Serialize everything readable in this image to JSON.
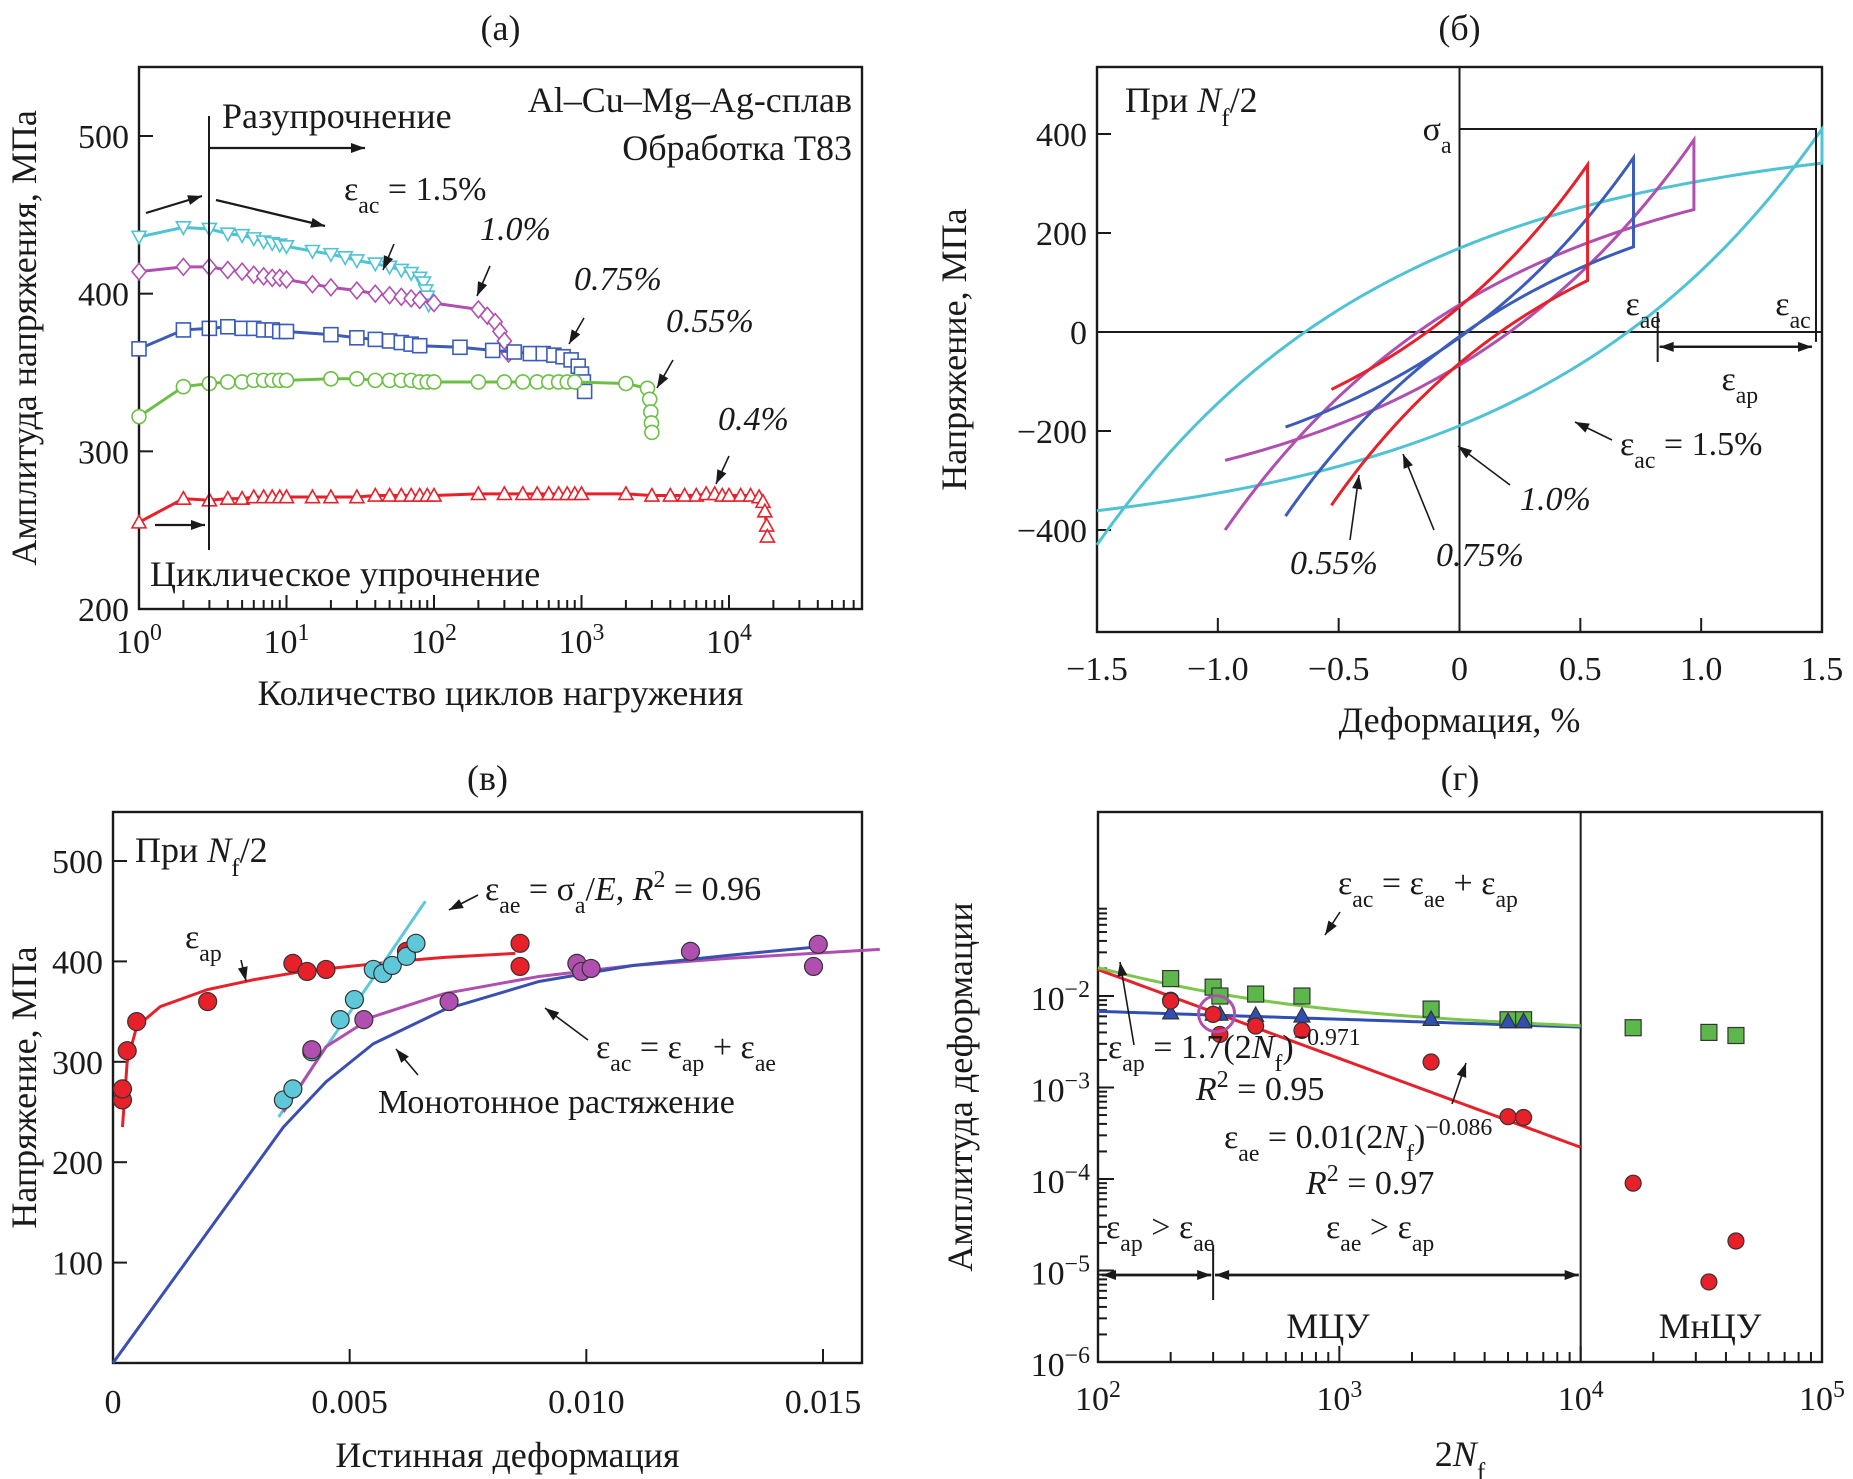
{
  "chart_data": [
    {
      "id": "a",
      "type": "scatter",
      "panel_label": "(а)",
      "title": "(a)",
      "xlabel": "Количество циклов нагружения",
      "ylabel": "Амплитуда напряжения, МПа",
      "xscale": "log",
      "xlim": [
        1,
        80000
      ],
      "ylim": [
        200,
        535
      ],
      "xticks": [
        {
          "v": 1,
          "base": "10",
          "exp": "0"
        },
        {
          "v": 10,
          "base": "10",
          "exp": "1"
        },
        {
          "v": 100,
          "base": "10",
          "exp": "2"
        },
        {
          "v": 1000,
          "base": "10",
          "exp": "3"
        },
        {
          "v": 10000,
          "base": "10",
          "exp": "4"
        }
      ],
      "yticks": [
        200,
        300,
        400,
        500
      ],
      "annotations": {
        "alloy": "Al–Cu–Mg–Ag-сплав",
        "treatment": "Обработка Т83",
        "softening": "Разупрочнение",
        "hardening": "Циклическое упрочнение",
        "eps_prefix": "ε",
        "eps_sub": "ac",
        "eps_eq": " = 1.5%"
      },
      "series": [
        {
          "name": "1.5%",
          "label": "1.5%",
          "color": "#4fc3d4",
          "marker": "triangle-down",
          "x": [
            1,
            2,
            3,
            4,
            5,
            6,
            7,
            8,
            9,
            10,
            15,
            20,
            25,
            30,
            40,
            50,
            60,
            70,
            80,
            85,
            88,
            90,
            92
          ],
          "y": [
            436,
            442,
            441,
            438,
            437,
            435,
            433,
            432,
            431,
            430,
            427,
            425,
            423,
            421,
            419,
            417,
            415,
            413,
            410,
            407,
            402,
            398,
            393
          ]
        },
        {
          "name": "1.0%",
          "label": "1.0%",
          "color": "#b04fb0",
          "marker": "diamond",
          "x": [
            1,
            2,
            3,
            4,
            5,
            6,
            7,
            8,
            9,
            10,
            15,
            20,
            30,
            40,
            50,
            60,
            70,
            80,
            100,
            200,
            230,
            260,
            280,
            300,
            320
          ],
          "y": [
            414,
            417,
            417,
            415,
            414,
            412,
            411,
            410,
            410,
            409,
            406,
            404,
            402,
            400,
            399,
            398,
            397,
            396,
            394,
            390,
            386,
            382,
            376,
            370,
            362
          ]
        },
        {
          "name": "0.75%",
          "label": "0.75%",
          "color": "#3b5cb8",
          "marker": "square",
          "x": [
            1,
            2,
            3,
            4,
            5,
            6,
            7,
            8,
            9,
            10,
            20,
            30,
            40,
            50,
            60,
            70,
            80,
            150,
            250,
            350,
            450,
            550,
            650,
            750,
            850,
            950,
            1000,
            1030,
            1050
          ],
          "y": [
            365,
            377,
            378,
            379,
            378,
            378,
            377,
            377,
            376,
            376,
            374,
            372,
            371,
            370,
            369,
            368,
            367,
            366,
            364,
            363,
            362,
            362,
            361,
            360,
            358,
            354,
            349,
            344,
            338
          ]
        },
        {
          "name": "0.55%",
          "label": "0.55%",
          "color": "#6cbf45",
          "marker": "circle",
          "x": [
            1,
            2,
            3,
            4,
            5,
            6,
            7,
            8,
            9,
            10,
            20,
            30,
            40,
            50,
            60,
            70,
            80,
            90,
            100,
            200,
            300,
            400,
            500,
            600,
            700,
            800,
            900,
            2000,
            2800,
            2900,
            2950,
            2980,
            3000
          ],
          "y": [
            322,
            341,
            343,
            344,
            344,
            345,
            345,
            345,
            345,
            345,
            346,
            346,
            345,
            345,
            345,
            345,
            344,
            344,
            344,
            344,
            344,
            344,
            344,
            344,
            344,
            344,
            344,
            343,
            340,
            333,
            325,
            318,
            312
          ]
        },
        {
          "name": "0.4%",
          "label": "0.4%",
          "color": "#e8202a",
          "marker": "triangle-up",
          "x": [
            1,
            2,
            3,
            4,
            5,
            6,
            7,
            8,
            9,
            10,
            15,
            20,
            30,
            40,
            50,
            60,
            70,
            80,
            90,
            100,
            200,
            300,
            400,
            500,
            600,
            700,
            800,
            900,
            1000,
            2000,
            3000,
            4000,
            5000,
            6000,
            7000,
            8000,
            9000,
            10000,
            12000,
            14000,
            16000,
            17000,
            17500,
            18000,
            18200
          ],
          "y": [
            255,
            270,
            269,
            270,
            270,
            271,
            271,
            271,
            271,
            271,
            271,
            271,
            271,
            272,
            272,
            272,
            272,
            272,
            272,
            272,
            273,
            273,
            273,
            273,
            273,
            273,
            273,
            273,
            273,
            273,
            272,
            272,
            272,
            272,
            273,
            273,
            272,
            272,
            272,
            272,
            271,
            268,
            262,
            253,
            246
          ]
        }
      ]
    },
    {
      "id": "b",
      "type": "line",
      "title": "(б)",
      "xlabel": "Деформация, %",
      "ylabel": "Напряжение, МПа",
      "xlim": [
        -1.5,
        1.5
      ],
      "ylim": [
        -515,
        540
      ],
      "xticks": [
        "−1.5",
        "−1.0",
        "−0.5",
        "0",
        "0.5",
        "1.0",
        "1.5"
      ],
      "xtick_values": [
        -1.5,
        -1.0,
        -0.5,
        0,
        0.5,
        1.0,
        1.5
      ],
      "yticks": [
        {
          "v": 400,
          "t": "400"
        },
        {
          "v": 200,
          "t": "200"
        },
        {
          "v": 0,
          "t": "0"
        },
        {
          "v": -200,
          "t": "−200"
        },
        {
          "v": -400,
          "t": "−400"
        }
      ],
      "annotations": {
        "at_half_life_prefix": "При ",
        "at_half_life_N": "N",
        "at_half_life_sub": "f",
        "at_half_life_suffix": "/2",
        "sigma_a": "σ",
        "sigma_sub": "a",
        "eps": "ε",
        "eps_ae_sub": "ae",
        "eps_ac_sub": "ac",
        "eps_ap_sub": "ap",
        "eps_ac_eq": " = 1.5%",
        "loop_1_0": "1.0%",
        "loop_0_55": "0.55%",
        "loop_0_75": "0.75%"
      },
      "loops": [
        {
          "name": "1.5%",
          "color": "#4fc3d4",
          "strain_amplitude": 1.5,
          "stress_max": 410,
          "stress_min": -430,
          "plastic_zero_crossing": 0.82
        },
        {
          "name": "1.0%",
          "color": "#b04fb0",
          "strain_amplitude": 0.97,
          "stress_max": 388,
          "stress_min": -400,
          "plastic_zero_crossing": 0.45
        },
        {
          "name": "0.75%",
          "color": "#3b5cb8",
          "strain_amplitude": 0.72,
          "stress_max": 352,
          "stress_min": -372,
          "plastic_zero_crossing": 0.22
        },
        {
          "name": "0.55%",
          "color": "#e8202a",
          "strain_amplitude": 0.53,
          "stress_max": 338,
          "stress_min": -350,
          "plastic_zero_crossing": 0.06
        }
      ]
    },
    {
      "id": "c",
      "type": "scatter",
      "title": "(в)",
      "xlabel": "Истинная деформация",
      "ylabel": "Напряжение, МПа",
      "xlim": [
        0,
        0.0162
      ],
      "ylim": [
        0,
        548
      ],
      "xticks": [
        {
          "v": 0,
          "t": "0"
        },
        {
          "v": 0.005,
          "t": "0.005"
        },
        {
          "v": 0.01,
          "t": "0.010"
        },
        {
          "v": 0.015,
          "t": "0.015"
        }
      ],
      "yticks": [
        100,
        200,
        300,
        400,
        500
      ],
      "annotations": {
        "at_half_life_prefix": "При ",
        "at_half_life_N": "N",
        "at_half_life_sub": "f",
        "at_half_life_suffix": "/2",
        "eps": "ε",
        "ae_eq_main": " = σ",
        "ae_eq_rest": "/E, R",
        "ae_eq_end": " = 0.96",
        "ac_eq": "ε",
        "monotonic": "Монотонное растяжение"
      },
      "series": [
        {
          "name": "ε_ap",
          "color": "#e8202a",
          "x": [
            0.0002,
            0.0002,
            0.0003,
            0.0005,
            0.002,
            0.0038,
            0.0041,
            0.0045,
            0.0062,
            0.0086,
            0.0086
          ],
          "y": [
            262,
            273,
            311,
            340,
            360,
            398,
            390,
            392,
            410,
            418,
            395
          ]
        },
        {
          "name": "ε_ae",
          "color": "#5fc8d8",
          "x": [
            0.0036,
            0.0038,
            0.0042,
            0.0048,
            0.0051,
            0.0055,
            0.0057,
            0.0059,
            0.0062,
            0.0064
          ],
          "y": [
            262,
            273,
            310,
            342,
            362,
            392,
            388,
            396,
            405,
            418
          ]
        },
        {
          "name": "ε_ac",
          "color": "#b04fb0",
          "x": [
            0.0042,
            0.0053,
            0.0071,
            0.0098,
            0.0099,
            0.0101,
            0.0122,
            0.0149,
            0.0148
          ],
          "y": [
            312,
            342,
            360,
            398,
            390,
            393,
            410,
            417,
            395
          ]
        }
      ],
      "curves": [
        {
          "name": "ε_ap fit",
          "color": "#e8202a",
          "x": [
            0.0002,
            0.0003,
            0.0005,
            0.001,
            0.002,
            0.003,
            0.004,
            0.005,
            0.006,
            0.007,
            0.0085
          ],
          "y": [
            235,
            300,
            335,
            355,
            372,
            382,
            390,
            395,
            400,
            404,
            408
          ]
        },
        {
          "name": "ε_ae = σa/E, R² = 0.96",
          "color": "#5fc8d8",
          "x": [
            0.0035,
            0.0066
          ],
          "y": [
            245,
            460
          ]
        },
        {
          "name": "ε_ac = ε_ap + ε_ae",
          "color": "#b04fb0",
          "x": [
            0.0036,
            0.0045,
            0.0055,
            0.007,
            0.009,
            0.011,
            0.013,
            0.0162
          ],
          "y": [
            250,
            315,
            345,
            368,
            385,
            396,
            403,
            412
          ]
        },
        {
          "name": "Монотонное растяжение",
          "color": "#3b4fb0",
          "x": [
            0.0,
            0.0036,
            0.0045,
            0.0055,
            0.007,
            0.009,
            0.011,
            0.013,
            0.015
          ],
          "y": [
            0,
            235,
            280,
            318,
            352,
            380,
            396,
            406,
            415
          ]
        }
      ]
    },
    {
      "id": "d",
      "type": "scatter",
      "title": "(г)",
      "xlabel_prefix": "2",
      "xlabel_N": "N",
      "xlabel_sub": "f",
      "ylabel": "Амплитуда деформации",
      "xscale": "log",
      "yscale": "log",
      "xlim": [
        100,
        100000
      ],
      "ylim": [
        1e-06,
        0.055
      ],
      "xticks": [
        {
          "v": 100,
          "base": "10",
          "exp": "2"
        },
        {
          "v": 1000,
          "base": "10",
          "exp": "3"
        },
        {
          "v": 10000,
          "base": "10",
          "exp": "4"
        },
        {
          "v": 100000,
          "base": "10",
          "exp": "5"
        }
      ],
      "yticks": [
        {
          "v": 0.01,
          "base": "10",
          "exp": "−2"
        },
        {
          "v": 0.001,
          "base": "10",
          "exp": "−3"
        },
        {
          "v": 0.0001,
          "base": "10",
          "exp": "−4"
        },
        {
          "v": 1e-05,
          "base": "10",
          "exp": "−5"
        },
        {
          "v": 1e-06,
          "base": "10",
          "exp": "−6"
        }
      ],
      "annotations": {
        "ac_eq": "ε",
        "eq_ac": "εac = εae + εap",
        "ap_fit": "εap = 1.7(2Nf)^−0.971",
        "ap_r2": "R² = 0.95",
        "ae_fit": "εae = 0.01(2Nf)^−0.086",
        "ae_r2": "R² = 0.97",
        "ap_gt_ae": "εap > εae",
        "ae_gt_ap": "εae > εap",
        "lcf": "МЦУ",
        "hcf": "МнЦУ",
        "transition_2Nf": 300,
        "regime_boundary_2Nf": 10000
      },
      "series": [
        {
          "name": "ε_ac",
          "color": "#5cb84a",
          "marker": "square",
          "x": [
            200,
            300,
            320,
            450,
            700,
            2400,
            5000,
            5800,
            16500,
            34000,
            44000
          ],
          "y": [
            0.0155,
            0.0125,
            0.01,
            0.0105,
            0.01,
            0.0072,
            0.0055,
            0.0055,
            0.0045,
            0.004,
            0.0037
          ]
        },
        {
          "name": "ε_ae",
          "color": "#2f4fb5",
          "marker": "triangle",
          "x": [
            200,
            300,
            320,
            450,
            700,
            2400,
            5000,
            5800
          ],
          "y": [
            0.0066,
            0.0064,
            0.0064,
            0.0062,
            0.0061,
            0.0056,
            0.0053,
            0.0053
          ]
        },
        {
          "name": "ε_ap",
          "color": "#e8202a",
          "marker": "circle",
          "x": [
            200,
            200,
            300,
            320,
            450,
            700,
            2400,
            5000,
            5800,
            16500,
            34000,
            44000
          ],
          "y": [
            0.009,
            0.0088,
            0.0063,
            0.0038,
            0.0047,
            0.0042,
            0.0019,
            0.00048,
            0.00047,
            9e-05,
            7.5e-06,
            2.1e-05
          ]
        }
      ],
      "curves": [
        {
          "name": "ε_ac fit",
          "color": "#7cc64a",
          "fn": "sum",
          "x_range": [
            100,
            10000
          ]
        },
        {
          "name": "ε_ae fit",
          "color": "#2f4fb5",
          "coef": 0.0101,
          "exp": -0.086,
          "x_range": [
            100,
            10000
          ]
        },
        {
          "name": "ε_ap fit",
          "color": "#e8202a",
          "coef": 1.7,
          "exp": -0.971,
          "x_range": [
            100,
            10000
          ]
        }
      ]
    }
  ]
}
